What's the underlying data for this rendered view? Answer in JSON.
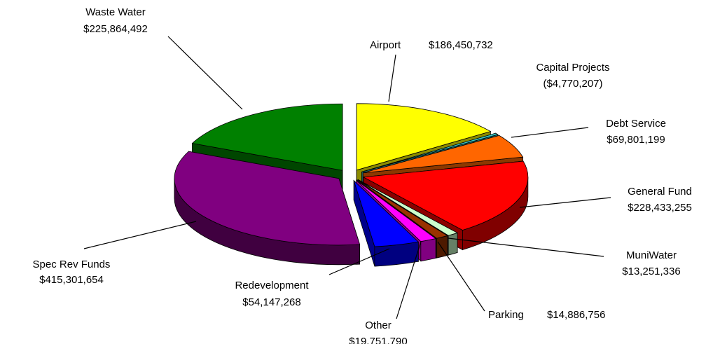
{
  "chart_data": {
    "type": "pie",
    "categories": [
      "Airport",
      "Capital Projects",
      "Debt Service",
      "General Fund",
      "MuniWater",
      "Parking",
      "Other",
      "Redevelopment",
      "Spec Rev Funds",
      "Waste Water"
    ],
    "values": [
      186450732,
      -4770207,
      69801199,
      228433255,
      13251336,
      14886756,
      19751790,
      54147268,
      415301654,
      225864492
    ],
    "value_labels": [
      "$186,450,732",
      "($4,770,207)",
      "$69,801,199",
      "$228,433,255",
      "$13,251,336",
      "$14,886,756",
      "$19,751,790",
      "$54,147,268",
      "$415,301,654",
      "$225,864,492"
    ],
    "colors": [
      "#ffff00",
      "#33cccc",
      "#ff6600",
      "#ff0000",
      "#ccffcc",
      "#993300",
      "#ff00ff",
      "#0000ff",
      "#800080",
      "#008000"
    ]
  }
}
